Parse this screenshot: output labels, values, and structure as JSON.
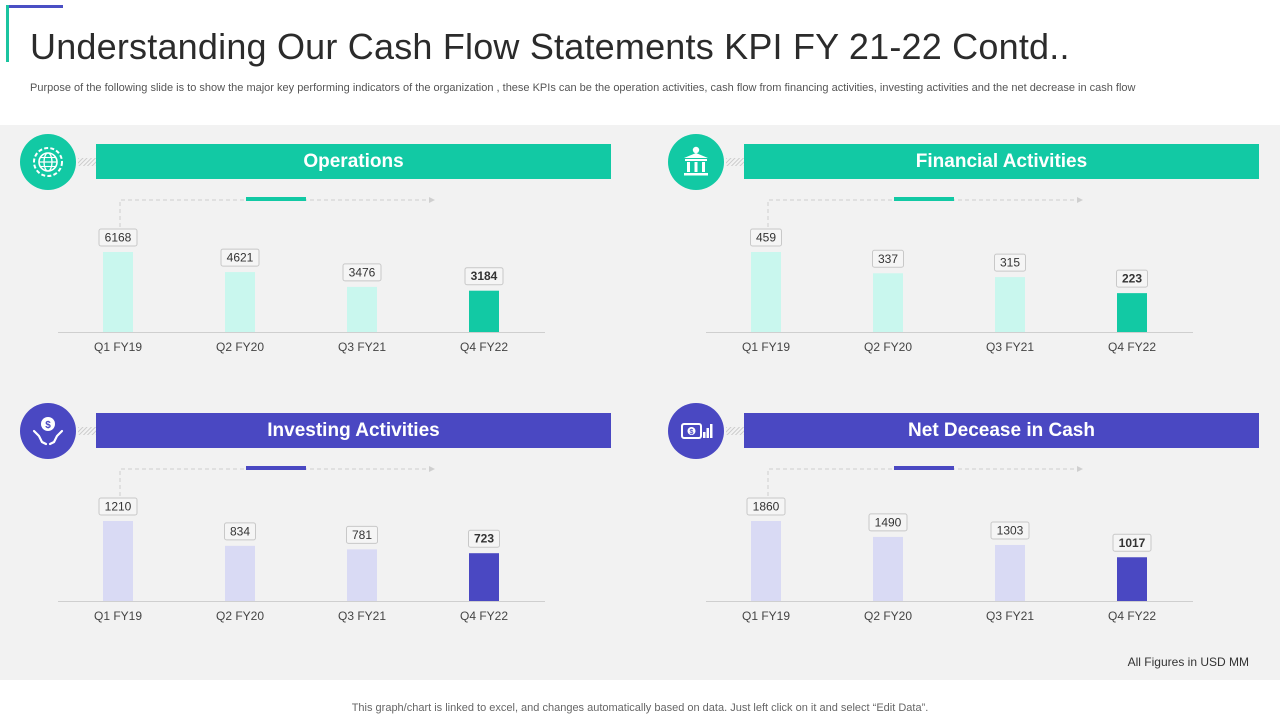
{
  "header": {
    "title": "Understanding Our Cash Flow Statements KPI FY 21-22 Contd..",
    "subtitle": "Purpose of the following slide is to show the major key performing indicators of the organization , these KPIs can be the operation activities, cash flow from financing activities, investing activities and the net decrease in cash flow"
  },
  "footnote": "All Figures in USD MM",
  "footer": "This graph/chart is linked to excel,  and changes automatically based on data. Just left click on it and select “Edit Data”.",
  "colors": {
    "teal": "#12c9a4",
    "teal_light": "#c9f7ee",
    "purple": "#4a48c2",
    "purple_light": "#d9daf4"
  },
  "cards": [
    {
      "title": "Operations",
      "icon": "globe-gear-icon"
    },
    {
      "title": "Financial Activities",
      "icon": "bank-icon"
    },
    {
      "title": "Investing Activities",
      "icon": "hands-dollar-icon"
    },
    {
      "title": "Net Decease in Cash",
      "icon": "cash-growth-icon"
    }
  ],
  "chart_data": [
    {
      "type": "bar",
      "categories": [
        "Q1 FY19",
        "Q2 FY20",
        "Q3 FY21",
        "Q4 FY22"
      ],
      "values": [
        6168,
        4621,
        3476,
        3184
      ],
      "title": "Operations",
      "highlight_index": 3
    },
    {
      "type": "bar",
      "categories": [
        "Q1 FY19",
        "Q2 FY20",
        "Q3 FY21",
        "Q4 FY22"
      ],
      "values": [
        459,
        337,
        315,
        223
      ],
      "title": "Financial Activities",
      "highlight_index": 3
    },
    {
      "type": "bar",
      "categories": [
        "Q1 FY19",
        "Q2 FY20",
        "Q3 FY21",
        "Q4 FY22"
      ],
      "values": [
        1210,
        834,
        781,
        723
      ],
      "title": "Investing Activities",
      "highlight_index": 3
    },
    {
      "type": "bar",
      "categories": [
        "Q1 FY19",
        "Q2 FY20",
        "Q3 FY21",
        "Q4 FY22"
      ],
      "values": [
        1860,
        1490,
        1303,
        1017
      ],
      "title": "Net Decease in Cash",
      "highlight_index": 3
    }
  ]
}
